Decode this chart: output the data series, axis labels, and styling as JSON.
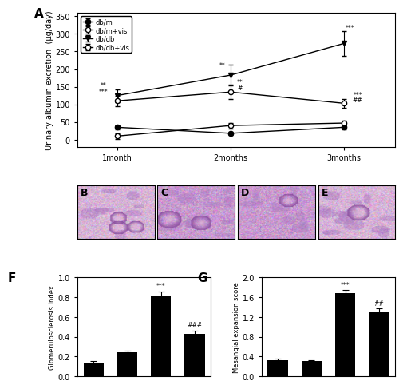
{
  "panel_A": {
    "xlabel_ticks": [
      "1month",
      "2months",
      "3months"
    ],
    "ylabel": "Urinary albumin excretion  (µg/day)",
    "ylim": [
      -20,
      360
    ],
    "yticks": [
      0,
      50,
      100,
      150,
      200,
      250,
      300,
      350
    ],
    "series_names": [
      "db/m",
      "db/m+vis",
      "db/db",
      "db/db+vis"
    ],
    "values": {
      "db/m": [
        35,
        18,
        35
      ],
      "db/m+vis": [
        10,
        40,
        47
      ],
      "db/db": [
        125,
        183,
        273
      ],
      "db/db+vis": [
        110,
        135,
        103
      ]
    },
    "errors": {
      "db/m": [
        5,
        5,
        5
      ],
      "db/m+vis": [
        8,
        8,
        6
      ],
      "db/db": [
        18,
        30,
        35
      ],
      "db/db+vis": [
        15,
        20,
        12
      ]
    }
  },
  "panel_F": {
    "ylabel": "Glomerulosclerosis index",
    "ylim": [
      0,
      1.0
    ],
    "yticks": [
      0.0,
      0.2,
      0.4,
      0.6,
      0.8,
      1.0
    ],
    "values": [
      0.13,
      0.24,
      0.82,
      0.43
    ],
    "errors": [
      0.025,
      0.02,
      0.04,
      0.03
    ],
    "annotations": [
      "",
      "",
      "***",
      "###"
    ]
  },
  "panel_G": {
    "ylabel": "Mesangial expansion score",
    "ylim": [
      0,
      2.0
    ],
    "yticks": [
      0.0,
      0.4,
      0.8,
      1.2,
      1.6,
      2.0
    ],
    "values": [
      0.32,
      0.3,
      1.68,
      1.3
    ],
    "errors": [
      0.04,
      0.03,
      0.06,
      0.07
    ],
    "annotations": [
      "",
      "",
      "***",
      "##"
    ]
  },
  "hist_labels": [
    "B",
    "C",
    "D",
    "E"
  ],
  "background_color": "#ffffff",
  "font_size": 7
}
